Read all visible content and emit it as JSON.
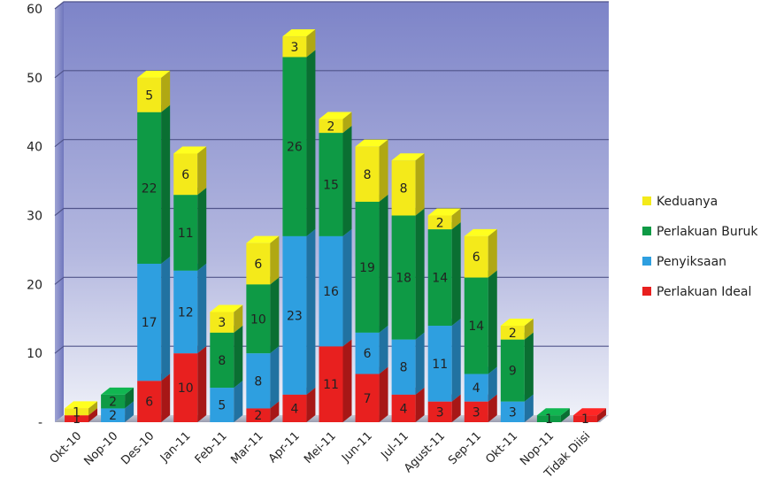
{
  "chart_data": {
    "type": "bar",
    "stacked": true,
    "categories": [
      "Okt-10",
      "Nop-10",
      "Des-10",
      "Jan-11",
      "Feb-11",
      "Mar-11",
      "Apr-11",
      "Mei-11",
      "Jun-11",
      "Jul-11",
      "Agust-11",
      "Sep-11",
      "Okt-11",
      "Nop-11",
      "Tidak Diisi"
    ],
    "series": [
      {
        "name": "Perlakuan Ideal",
        "color": "#e8201f",
        "values": [
          1,
          0,
          6,
          10,
          0,
          2,
          4,
          11,
          7,
          4,
          3,
          3,
          0,
          0,
          1
        ]
      },
      {
        "name": "Penyiksaan",
        "color": "#2e9fe0",
        "values": [
          0,
          2,
          17,
          12,
          5,
          8,
          23,
          16,
          6,
          8,
          11,
          4,
          3,
          0,
          0
        ]
      },
      {
        "name": "Perlakuan Buruk",
        "color": "#0e9a45",
        "values": [
          0,
          2,
          22,
          11,
          8,
          10,
          26,
          15,
          19,
          18,
          14,
          14,
          9,
          1,
          0
        ]
      },
      {
        "name": "Keduanya",
        "color": "#f4ea1a",
        "values": [
          1,
          0,
          5,
          6,
          3,
          6,
          3,
          2,
          8,
          8,
          2,
          6,
          2,
          0,
          0
        ]
      }
    ],
    "legend_order": [
      "Keduanya",
      "Perlakuan Buruk",
      "Penyiksaan",
      "Perlakuan Ideal"
    ],
    "legend_position": "right",
    "ylim": [
      0,
      60
    ],
    "yticks": [
      "-",
      "10",
      "20",
      "30",
      "40",
      "50",
      "60"
    ],
    "grid": true,
    "xlabel": "",
    "ylabel": "",
    "title": ""
  }
}
